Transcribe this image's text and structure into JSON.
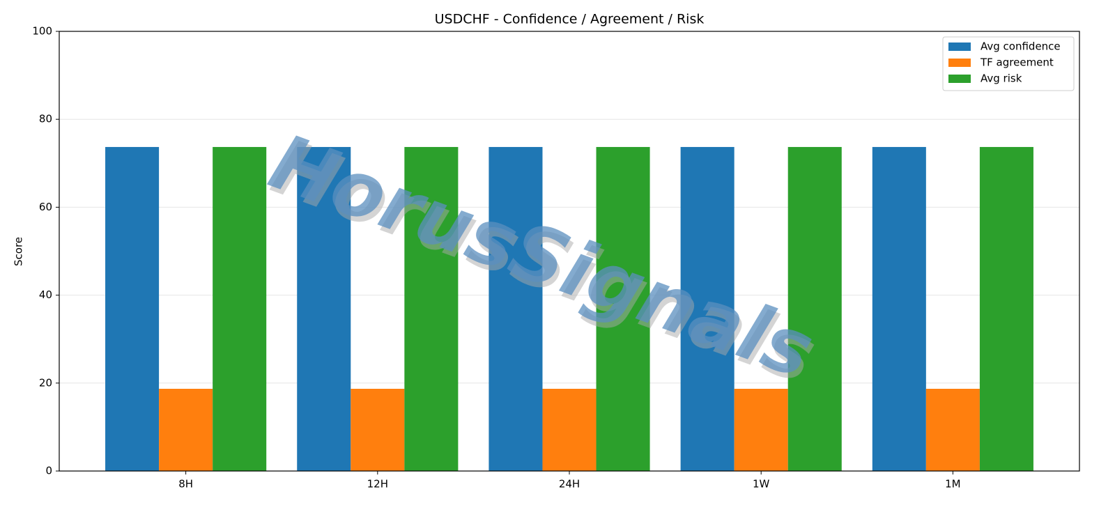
{
  "chart_data": {
    "type": "bar",
    "title": "USDCHF - Confidence / Agreement / Risk",
    "y_label": "Score",
    "watermark": "HorusSignals",
    "categories": [
      "8H",
      "12H",
      "24H",
      "1W",
      "1M"
    ],
    "series": [
      {
        "name": "Avg confidence",
        "color": "#1f77b4",
        "values": [
          73.7,
          73.7,
          73.7,
          73.7,
          73.7
        ]
      },
      {
        "name": "TF agreement",
        "color": "#ff7f0e",
        "values": [
          18.7,
          18.7,
          18.7,
          18.7,
          18.7
        ]
      },
      {
        "name": "Avg risk",
        "color": "#2ca02c",
        "values": [
          73.7,
          73.7,
          73.7,
          73.7,
          73.7
        ]
      }
    ],
    "ylim": [
      0,
      100
    ],
    "yticks": [
      0,
      20,
      40,
      60,
      80,
      100
    ],
    "grid": true,
    "legend": "upper right"
  }
}
